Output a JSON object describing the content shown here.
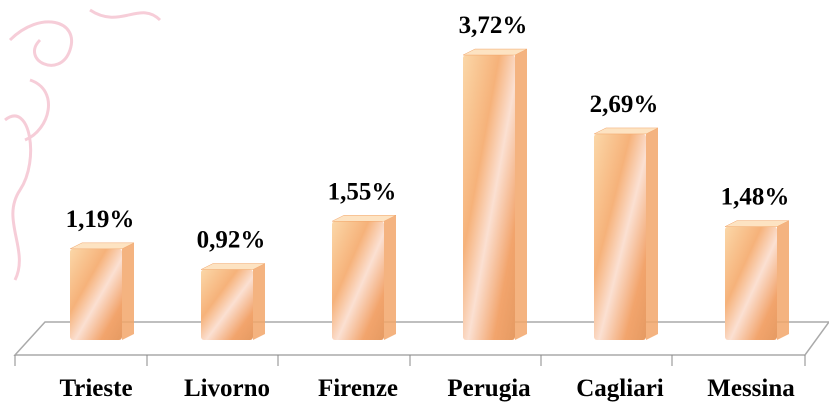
{
  "chart_data": {
    "type": "bar",
    "categories": [
      "Trieste",
      "Livorno",
      "Firenze",
      "Perugia",
      "Cagliari",
      "Messina"
    ],
    "values": [
      1.19,
      0.92,
      1.55,
      3.72,
      2.69,
      1.48
    ],
    "value_labels": [
      "1,19%",
      "0,92%",
      "1,55%",
      "3,72%",
      "2,69%",
      "1,48%"
    ],
    "color": "#f2a66a"
  }
}
